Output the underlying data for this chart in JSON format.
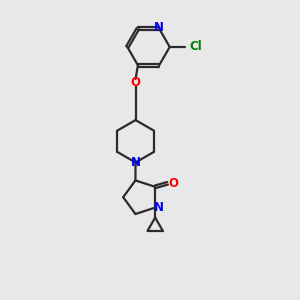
{
  "background_color": "#e8e8e8",
  "bond_color": "#2b2b2b",
  "N_color": "#0000ff",
  "O_color": "#ff0000",
  "Cl_color": "#008000",
  "line_width": 1.6,
  "figsize": [
    3.0,
    3.0
  ],
  "dpi": 100,
  "xlim": [
    0,
    10
  ],
  "ylim": [
    0,
    10
  ]
}
